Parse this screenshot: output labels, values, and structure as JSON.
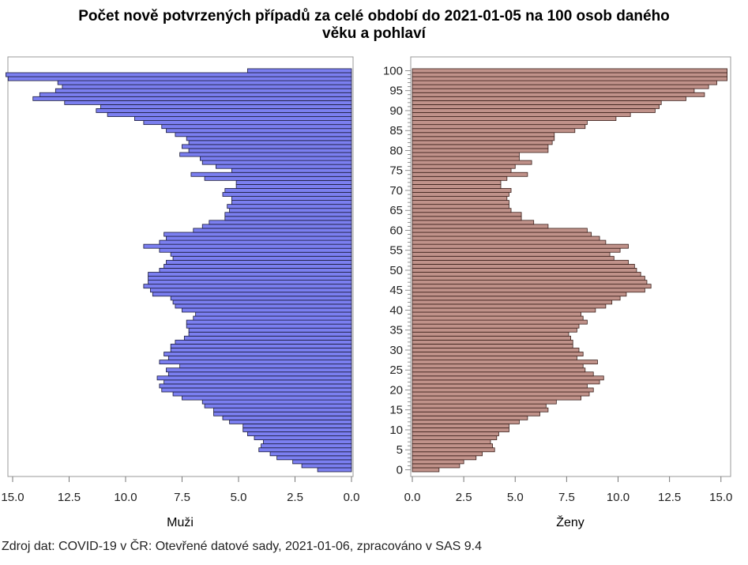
{
  "title_line1": "Počet nově potvrzených případů za celé období do 2021-01-05 na 100 osob daného",
  "title_line2": "věku a pohlaví",
  "footnote": "Zdroj dat: COVID-19 v ČR: Otevřené datové sady, 2021-01-06, zpracováno v SAS 9.4",
  "chart_data": {
    "type": "bar",
    "orientation": "horizontal",
    "layout": "population pyramid (two panels)",
    "categories": [
      0,
      1,
      2,
      3,
      4,
      5,
      6,
      7,
      8,
      9,
      10,
      11,
      12,
      13,
      14,
      15,
      16,
      17,
      18,
      19,
      20,
      21,
      22,
      23,
      24,
      25,
      26,
      27,
      28,
      29,
      30,
      31,
      32,
      33,
      34,
      35,
      36,
      37,
      38,
      39,
      40,
      41,
      42,
      43,
      44,
      45,
      46,
      47,
      48,
      49,
      50,
      51,
      52,
      53,
      54,
      55,
      56,
      57,
      58,
      59,
      60,
      61,
      62,
      63,
      64,
      65,
      66,
      67,
      68,
      69,
      70,
      71,
      72,
      73,
      74,
      75,
      76,
      77,
      78,
      79,
      80,
      81,
      82,
      83,
      84,
      85,
      86,
      87,
      88,
      89,
      90,
      91,
      92,
      93,
      94,
      95,
      96,
      97,
      98,
      99,
      100
    ],
    "ytick_labels": [
      "0",
      "5",
      "10",
      "15",
      "20",
      "25",
      "30",
      "35",
      "40",
      "45",
      "50",
      "55",
      "60",
      "65",
      "70",
      "75",
      "80",
      "85",
      "90",
      "95",
      "100"
    ],
    "xtick_labels": [
      "15.0",
      "12.5",
      "10.0",
      "7.5",
      "5.0",
      "2.5",
      "0.0"
    ],
    "xlim": [
      0,
      15.3
    ],
    "series": [
      {
        "name": "Muži",
        "color": "#7b7ff0",
        "values": [
          1.5,
          2.2,
          2.6,
          3.3,
          3.6,
          4.1,
          4.0,
          3.9,
          4.3,
          4.6,
          4.8,
          4.8,
          5.4,
          5.7,
          6.1,
          6.1,
          6.5,
          6.6,
          7.5,
          7.9,
          8.4,
          8.5,
          8.3,
          8.6,
          8.1,
          8.2,
          7.6,
          8.5,
          8.1,
          8.3,
          8.0,
          8.0,
          7.8,
          7.4,
          7.2,
          7.2,
          7.3,
          7.3,
          7.0,
          6.9,
          7.5,
          7.8,
          7.9,
          8.0,
          8.8,
          8.9,
          9.2,
          9.0,
          9.0,
          9.0,
          8.5,
          8.3,
          8.2,
          7.9,
          8.0,
          8.5,
          9.2,
          8.5,
          8.2,
          8.3,
          7.0,
          6.6,
          6.3,
          5.6,
          5.6,
          5.4,
          5.5,
          5.3,
          5.3,
          5.7,
          5.6,
          5.1,
          5.1,
          6.5,
          7.1,
          5.3,
          6.0,
          6.6,
          6.7,
          7.6,
          7.2,
          7.5,
          7.2,
          7.3,
          7.8,
          8.2,
          8.4,
          9.2,
          9.6,
          10.8,
          11.3,
          11.1,
          12.7,
          14.1,
          13.8,
          13.1,
          12.8,
          13.0,
          15.2,
          15.3,
          4.6
        ]
      },
      {
        "name": "Ženy",
        "color": "#c0928a",
        "values": [
          1.3,
          2.3,
          2.5,
          3.1,
          3.4,
          4.0,
          3.9,
          3.8,
          4.1,
          4.2,
          4.7,
          4.7,
          5.2,
          5.6,
          6.2,
          6.6,
          6.5,
          7.0,
          8.2,
          8.6,
          8.8,
          8.5,
          9.1,
          9.3,
          8.8,
          8.4,
          8.3,
          9.0,
          8.0,
          8.3,
          8.1,
          7.8,
          7.8,
          7.7,
          7.6,
          8.0,
          8.1,
          8.5,
          8.3,
          8.2,
          8.9,
          9.4,
          9.7,
          10.1,
          10.4,
          11.3,
          11.6,
          11.4,
          11.3,
          11.1,
          10.9,
          10.8,
          10.5,
          9.8,
          9.6,
          10.1,
          10.5,
          9.4,
          9.1,
          8.7,
          8.5,
          6.6,
          5.9,
          5.3,
          5.3,
          4.8,
          4.7,
          4.7,
          4.6,
          4.7,
          4.8,
          4.3,
          4.3,
          4.6,
          5.6,
          4.8,
          5.0,
          5.8,
          5.2,
          5.2,
          6.6,
          6.6,
          6.8,
          6.9,
          6.9,
          7.9,
          8.4,
          8.5,
          9.9,
          10.6,
          11.8,
          12.0,
          12.1,
          13.3,
          14.2,
          13.7,
          14.4,
          14.8,
          15.3,
          15.3,
          15.3
        ]
      }
    ]
  }
}
